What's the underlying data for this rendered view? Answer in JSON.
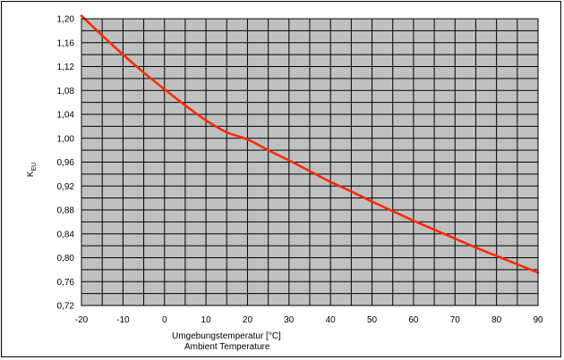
{
  "chart_data": {
    "type": "line",
    "title": "",
    "xlabel_de": "Umgebungstemperatur  [°C]",
    "xlabel_en": "Ambient Temperature",
    "ylabel": "K",
    "ylabel_subscript": "EU",
    "xlim": [
      -20,
      90
    ],
    "ylim": [
      0.72,
      1.2
    ],
    "x_ticks": [
      "-20",
      "-10",
      "0",
      "10",
      "20",
      "30",
      "40",
      "50",
      "60",
      "70",
      "80",
      "90"
    ],
    "y_ticks": [
      "0,72",
      "0,76",
      "0,80",
      "0,84",
      "0,88",
      "0,92",
      "0,96",
      "1,00",
      "1,04",
      "1,08",
      "1,12",
      "1,16",
      "1,20"
    ],
    "grid": true,
    "background_color": "#c0c0c0",
    "series": [
      {
        "color": "#ff2a00",
        "x": [
          -20,
          -15,
          -10,
          -5,
          0,
          5,
          10,
          15,
          20,
          25,
          30,
          35,
          40,
          45,
          50,
          55,
          60,
          65,
          70,
          75,
          80,
          85,
          90
        ],
        "y": [
          1.205,
          1.172,
          1.14,
          1.11,
          1.082,
          1.055,
          1.03,
          1.01,
          0.998,
          0.98,
          0.963,
          0.945,
          0.927,
          0.911,
          0.894,
          0.878,
          0.862,
          0.847,
          0.832,
          0.817,
          0.803,
          0.789,
          0.775
        ]
      }
    ]
  }
}
